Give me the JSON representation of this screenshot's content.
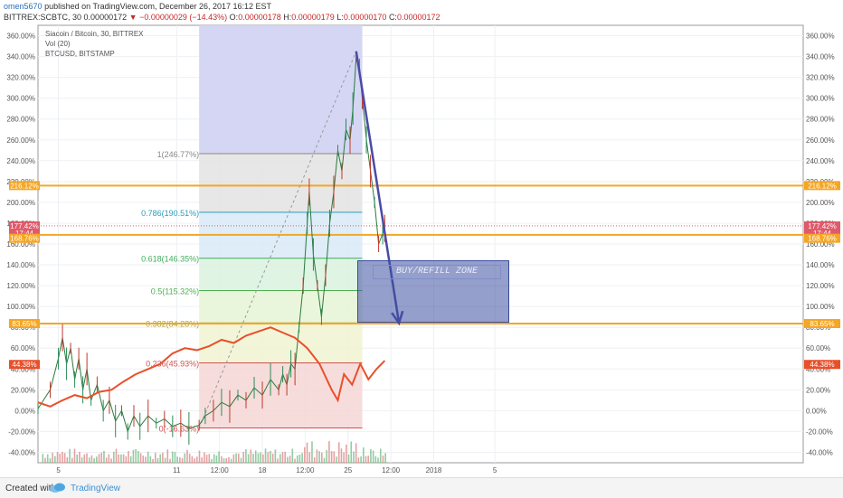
{
  "header": {
    "author": "omen5670",
    "published": "published on TradingView.com, December 26, 2017 16:12 EST",
    "symbol": "BITTREX:SCBTC, 30",
    "price": "0.00000172",
    "change": "−0.00000029 (−14.43%)",
    "o_label": "O:",
    "o_val": "0.00000178",
    "h_label": "H:",
    "h_val": "0.00000179",
    "l_label": "L:",
    "l_val": "0.00000170",
    "c_label": "C:",
    "c_val": "0.00000172"
  },
  "legend": {
    "line1": "Siacoin / Bitcoin, 30, BITTREX",
    "line2": "Vol (20)",
    "line3": "BTCUSD, BITSTAMP"
  },
  "footer": {
    "created": "Created with",
    "brand": "TradingView"
  },
  "zone_label": "BUY/REFILL ZONE",
  "chart_data": {
    "type": "line",
    "y_ticks": [
      "360.00%",
      "340.00%",
      "320.00%",
      "300.00%",
      "280.00%",
      "260.00%",
      "240.00%",
      "220.00%",
      "200.00%",
      "180.00%",
      "160.00%",
      "140.00%",
      "120.00%",
      "100.00%",
      "80.00%",
      "60.00%",
      "40.00%",
      "20.00%",
      "0.00%",
      "-20.00%",
      "-40.00%"
    ],
    "y_values": [
      360,
      340,
      320,
      300,
      280,
      260,
      240,
      220,
      200,
      180,
      160,
      140,
      120,
      100,
      80,
      60,
      40,
      20,
      0,
      -20,
      -40
    ],
    "ylim": [
      -50,
      370
    ],
    "x_ticks": [
      {
        "label": "5",
        "x": 0.5
      },
      {
        "label": "11",
        "x": 3.4
      },
      {
        "label": "12:00",
        "x": 4.45
      },
      {
        "label": "18",
        "x": 5.5
      },
      {
        "label": "12:00",
        "x": 6.55
      },
      {
        "label": "25",
        "x": 7.6
      },
      {
        "label": "12:00",
        "x": 8.65
      },
      {
        "label": "2018",
        "x": 9.7
      },
      {
        "label": "5",
        "x": 11.2
      }
    ],
    "xlim": [
      0,
      18
    ],
    "badges_left": [
      {
        "label": "216.12%",
        "value": 216.12,
        "color": "#f5a623"
      },
      {
        "label": "177.42%",
        "value": 177.42,
        "color": "#e05a6a"
      },
      {
        "label": "17:44",
        "value": 170.5,
        "color": "#e05a6a"
      },
      {
        "label": "168.76%",
        "value": 165.5,
        "color": "#f5a623"
      },
      {
        "label": "83.65%",
        "value": 83.65,
        "color": "#f5a623"
      },
      {
        "label": "44.38%",
        "value": 44.38,
        "color": "#e8502a"
      }
    ],
    "badges_right": [
      {
        "label": "216.12%",
        "value": 216.12,
        "color": "#f5a623"
      },
      {
        "label": "177.42%",
        "value": 177.42,
        "color": "#e05a6a"
      },
      {
        "label": "17:44",
        "value": 170.5,
        "color": "#e05a6a"
      },
      {
        "label": "168.76%",
        "value": 165.5,
        "color": "#f5a623"
      },
      {
        "label": "83.65%",
        "value": 83.65,
        "color": "#f5a623"
      },
      {
        "label": "44.38%",
        "value": 44.38,
        "color": "#e8502a"
      }
    ],
    "horizontal_lines": [
      216.12,
      168.76,
      83.65
    ],
    "fib": {
      "x_start": 3.95,
      "x_end": 7.95,
      "levels": [
        {
          "label": "1(246.77%)",
          "value": 246.77,
          "color": "#888888",
          "fill": "#e3e3e3"
        },
        {
          "label": "0.786(190.51%)",
          "value": 190.51,
          "color": "#2a9dbd",
          "fill": "#d8eaf6"
        },
        {
          "label": "0.618(146.35%)",
          "value": 146.35,
          "color": "#3fae5a",
          "fill": "#daf2df"
        },
        {
          "label": "0.5(115.32%)",
          "value": 115.32,
          "color": "#4caf50",
          "fill": "#e6f4d6"
        },
        {
          "label": "0.382(84.28%)",
          "value": 84.28,
          "color": "#9aa83a",
          "fill": "#f1f3d2"
        },
        {
          "label": "0.236(45.93%)",
          "value": 45.93,
          "color": "#d05050",
          "fill": "#f6d6d6"
        },
        {
          "label": "0(-16.63%)",
          "value": -16.63,
          "color": "#d05050",
          "fill": null
        }
      ],
      "top_fill": "#d4d6f3",
      "top_value": 370
    },
    "scgbtc_series": [
      [
        0.0,
        2
      ],
      [
        0.3,
        20
      ],
      [
        0.5,
        50
      ],
      [
        0.6,
        70
      ],
      [
        0.7,
        45
      ],
      [
        0.8,
        60
      ],
      [
        0.9,
        30
      ],
      [
        1.0,
        50
      ],
      [
        1.1,
        20
      ],
      [
        1.2,
        40
      ],
      [
        1.3,
        10
      ],
      [
        1.45,
        25
      ],
      [
        1.6,
        0
      ],
      [
        1.75,
        10
      ],
      [
        1.9,
        -10
      ],
      [
        2.05,
        0
      ],
      [
        2.2,
        -20
      ],
      [
        2.35,
        -5
      ],
      [
        2.5,
        -15
      ],
      [
        2.7,
        -5
      ],
      [
        2.9,
        -12
      ],
      [
        3.1,
        -8
      ],
      [
        3.3,
        -15
      ],
      [
        3.5,
        -12
      ],
      [
        3.7,
        -17
      ],
      [
        3.95,
        -14
      ],
      [
        4.1,
        -5
      ],
      [
        4.3,
        0
      ],
      [
        4.5,
        8
      ],
      [
        4.7,
        4
      ],
      [
        4.9,
        15
      ],
      [
        5.1,
        10
      ],
      [
        5.3,
        22
      ],
      [
        5.5,
        15
      ],
      [
        5.7,
        30
      ],
      [
        5.9,
        20
      ],
      [
        6.0,
        35
      ],
      [
        6.1,
        25
      ],
      [
        6.2,
        45
      ],
      [
        6.3,
        40
      ],
      [
        6.4,
        80
      ],
      [
        6.5,
        120
      ],
      [
        6.6,
        180
      ],
      [
        6.65,
        210
      ],
      [
        6.75,
        150
      ],
      [
        6.85,
        120
      ],
      [
        6.95,
        90
      ],
      [
        7.05,
        130
      ],
      [
        7.15,
        180
      ],
      [
        7.25,
        210
      ],
      [
        7.35,
        250
      ],
      [
        7.45,
        230
      ],
      [
        7.55,
        270
      ],
      [
        7.65,
        260
      ],
      [
        7.72,
        290
      ],
      [
        7.8,
        340
      ],
      [
        7.88,
        330
      ],
      [
        7.95,
        300
      ],
      [
        8.05,
        260
      ],
      [
        8.15,
        230
      ],
      [
        8.25,
        200
      ],
      [
        8.35,
        160
      ],
      [
        8.45,
        170
      ],
      [
        8.5,
        175
      ]
    ],
    "btc_series": [
      [
        0.0,
        8
      ],
      [
        0.3,
        4
      ],
      [
        0.6,
        10
      ],
      [
        0.9,
        15
      ],
      [
        1.2,
        12
      ],
      [
        1.5,
        18
      ],
      [
        1.8,
        20
      ],
      [
        2.1,
        28
      ],
      [
        2.4,
        35
      ],
      [
        2.7,
        40
      ],
      [
        3.0,
        45
      ],
      [
        3.3,
        55
      ],
      [
        3.6,
        60
      ],
      [
        3.9,
        58
      ],
      [
        4.2,
        62
      ],
      [
        4.5,
        68
      ],
      [
        4.8,
        65
      ],
      [
        5.1,
        72
      ],
      [
        5.4,
        76
      ],
      [
        5.7,
        80
      ],
      [
        6.0,
        75
      ],
      [
        6.3,
        70
      ],
      [
        6.6,
        60
      ],
      [
        6.9,
        45
      ],
      [
        7.2,
        20
      ],
      [
        7.35,
        10
      ],
      [
        7.5,
        35
      ],
      [
        7.7,
        25
      ],
      [
        7.9,
        45
      ],
      [
        8.1,
        30
      ],
      [
        8.3,
        40
      ],
      [
        8.5,
        48
      ]
    ],
    "trend_line": {
      "from": [
        3.95,
        -16.63
      ],
      "to": [
        7.8,
        345
      ]
    },
    "arrow": {
      "from": [
        7.8,
        345
      ],
      "to": [
        8.85,
        84
      ]
    }
  }
}
